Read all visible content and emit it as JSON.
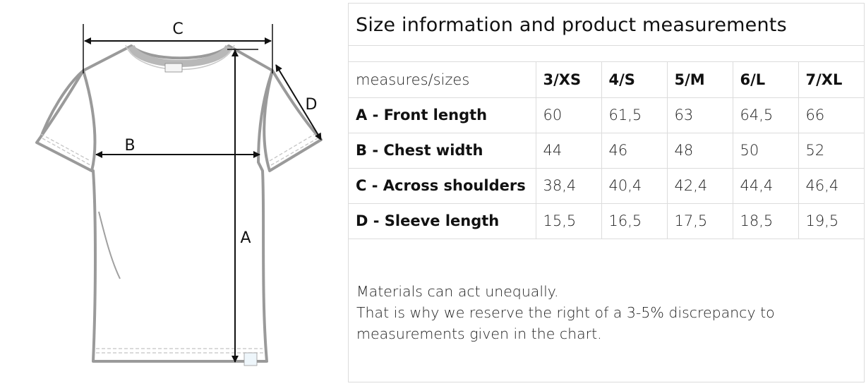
{
  "diagram": {
    "labels": {
      "a": "A",
      "b": "B",
      "c": "C",
      "d": "D"
    }
  },
  "panel": {
    "title": "Size information and product measurements",
    "header": {
      "corner": "measures/sizes",
      "sizes": [
        "3/XS",
        "4/S",
        "5/M",
        "6/L",
        "7/XL"
      ]
    },
    "rows": [
      {
        "label": "A - Front length",
        "values": [
          "60",
          "61,5",
          "63",
          "64,5",
          "66"
        ]
      },
      {
        "label": "B - Chest width",
        "values": [
          "44",
          "46",
          "48",
          "50",
          "52"
        ]
      },
      {
        "label": "C - Across shoulders",
        "values": [
          "38,4",
          "40,4",
          "42,4",
          "44,4",
          "46,4"
        ]
      },
      {
        "label": "D - Sleeve length",
        "values": [
          "15,5",
          "16,5",
          "17,5",
          "18,5",
          "19,5"
        ]
      }
    ],
    "note": [
      "Materials can act unequally.",
      "That is why we reserve the right of a 3-5% discrepancy to",
      "measurements given in the chart."
    ]
  }
}
